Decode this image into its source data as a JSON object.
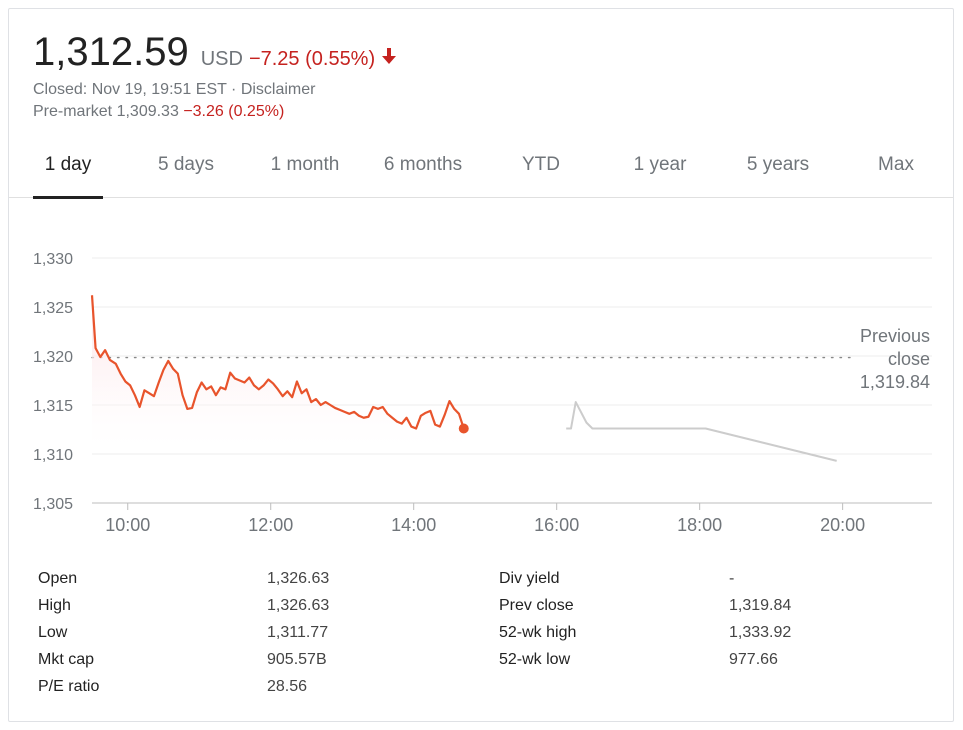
{
  "quote": {
    "price": "1,312.59",
    "currency": "USD",
    "change": "−7.25 (0.55%)",
    "closed_text": "Closed: Nov 19, 19:51 EST · Disclaimer",
    "premarket_label": "Pre-market 1,309.33",
    "premarket_change": "−3.26 (0.25%)",
    "down_color": "#c5221f"
  },
  "tabs": [
    {
      "label": "1 day",
      "active": true
    },
    {
      "label": "5 days"
    },
    {
      "label": "1 month"
    },
    {
      "label": "6 months"
    },
    {
      "label": "YTD"
    },
    {
      "label": "1 year"
    },
    {
      "label": "5 years"
    },
    {
      "label": "Max"
    }
  ],
  "chart_data": {
    "type": "line",
    "ylim": [
      1305,
      1330
    ],
    "yticks": [
      1330,
      1325,
      1320,
      1315,
      1310,
      1305
    ],
    "ytick_labels": [
      "1,330",
      "1,325",
      "1,320",
      "1,315",
      "1,310",
      "1,305"
    ],
    "xlim": [
      "09:30",
      "21:15"
    ],
    "xticks": [
      "10:00",
      "12:00",
      "14:00",
      "16:00",
      "18:00",
      "20:00"
    ],
    "grid": true,
    "previous_close": 1319.84,
    "previous_close_label": [
      "Previous",
      "close",
      "1,319.84"
    ],
    "series": [
      {
        "color": "#e8542c",
        "fill": "#fde0e4",
        "points": [
          [
            "09:30",
            1326.2
          ],
          [
            "09:33",
            1320.8
          ],
          [
            "09:37",
            1319.9
          ],
          [
            "09:41",
            1320.6
          ],
          [
            "09:45",
            1319.6
          ],
          [
            "09:50",
            1319.2
          ],
          [
            "09:54",
            1318.2
          ],
          [
            "09:58",
            1317.4
          ],
          [
            "10:02",
            1317.0
          ],
          [
            "10:06",
            1316.0
          ],
          [
            "10:10",
            1314.8
          ],
          [
            "10:14",
            1316.5
          ],
          [
            "10:18",
            1316.2
          ],
          [
            "10:22",
            1315.9
          ],
          [
            "10:26",
            1317.3
          ],
          [
            "10:30",
            1318.6
          ],
          [
            "10:34",
            1319.5
          ],
          [
            "10:38",
            1318.7
          ],
          [
            "10:42",
            1318.2
          ],
          [
            "10:46",
            1316.0
          ],
          [
            "10:50",
            1314.6
          ],
          [
            "10:54",
            1314.7
          ],
          [
            "10:58",
            1316.3
          ],
          [
            "11:02",
            1317.3
          ],
          [
            "11:06",
            1316.6
          ],
          [
            "11:10",
            1316.9
          ],
          [
            "11:14",
            1316.0
          ],
          [
            "11:18",
            1316.8
          ],
          [
            "11:22",
            1316.6
          ],
          [
            "11:26",
            1318.3
          ],
          [
            "11:30",
            1317.7
          ],
          [
            "11:34",
            1317.5
          ],
          [
            "11:38",
            1317.3
          ],
          [
            "11:42",
            1317.8
          ],
          [
            "11:46",
            1317.0
          ],
          [
            "11:50",
            1316.6
          ],
          [
            "11:54",
            1317.0
          ],
          [
            "11:58",
            1317.6
          ],
          [
            "12:02",
            1317.2
          ],
          [
            "12:06",
            1316.6
          ],
          [
            "12:10",
            1315.9
          ],
          [
            "12:14",
            1316.4
          ],
          [
            "12:18",
            1315.8
          ],
          [
            "12:22",
            1317.4
          ],
          [
            "12:26",
            1316.2
          ],
          [
            "12:30",
            1316.6
          ],
          [
            "12:34",
            1315.3
          ],
          [
            "12:38",
            1315.6
          ],
          [
            "12:42",
            1315.0
          ],
          [
            "12:46",
            1315.3
          ],
          [
            "12:50",
            1315.0
          ],
          [
            "12:54",
            1314.7
          ],
          [
            "12:58",
            1314.5
          ],
          [
            "13:02",
            1314.3
          ],
          [
            "13:06",
            1314.1
          ],
          [
            "13:10",
            1314.3
          ],
          [
            "13:14",
            1313.9
          ],
          [
            "13:18",
            1313.7
          ],
          [
            "13:22",
            1313.8
          ],
          [
            "13:26",
            1314.8
          ],
          [
            "13:30",
            1314.6
          ],
          [
            "13:34",
            1314.8
          ],
          [
            "13:38",
            1314.1
          ],
          [
            "13:42",
            1313.7
          ],
          [
            "13:46",
            1313.3
          ],
          [
            "13:50",
            1313.1
          ],
          [
            "13:54",
            1313.7
          ],
          [
            "13:58",
            1312.8
          ],
          [
            "14:02",
            1312.6
          ],
          [
            "14:06",
            1313.9
          ],
          [
            "14:10",
            1314.2
          ],
          [
            "14:14",
            1314.4
          ],
          [
            "14:18",
            1313.0
          ],
          [
            "14:22",
            1312.8
          ],
          [
            "14:26",
            1314.0
          ],
          [
            "14:30",
            1315.4
          ],
          [
            "14:34",
            1314.6
          ],
          [
            "14:38",
            1314.1
          ],
          [
            "14:42",
            1312.6
          ]
        ]
      },
      {
        "color": "#cccccc",
        "points": [
          [
            "16:08",
            1312.6
          ],
          [
            "16:12",
            1312.6
          ],
          [
            "16:16",
            1315.3
          ],
          [
            "16:25",
            1313.2
          ],
          [
            "16:30",
            1312.6
          ],
          [
            "18:05",
            1312.6
          ],
          [
            "19:55",
            1309.3
          ]
        ]
      }
    ],
    "last_point": [
      "14:42",
      1312.6
    ]
  },
  "stats": {
    "left": [
      {
        "label": "Open",
        "value": "1,326.63"
      },
      {
        "label": "High",
        "value": "1,326.63"
      },
      {
        "label": "Low",
        "value": "1,311.77"
      },
      {
        "label": "Mkt cap",
        "value": "905.57B"
      },
      {
        "label": "P/E ratio",
        "value": "28.56"
      }
    ],
    "right": [
      {
        "label": "Div yield",
        "value": "-"
      },
      {
        "label": "Prev close",
        "value": "1,319.84"
      },
      {
        "label": "52-wk high",
        "value": "1,333.92"
      },
      {
        "label": "52-wk low",
        "value": "977.66"
      }
    ]
  }
}
